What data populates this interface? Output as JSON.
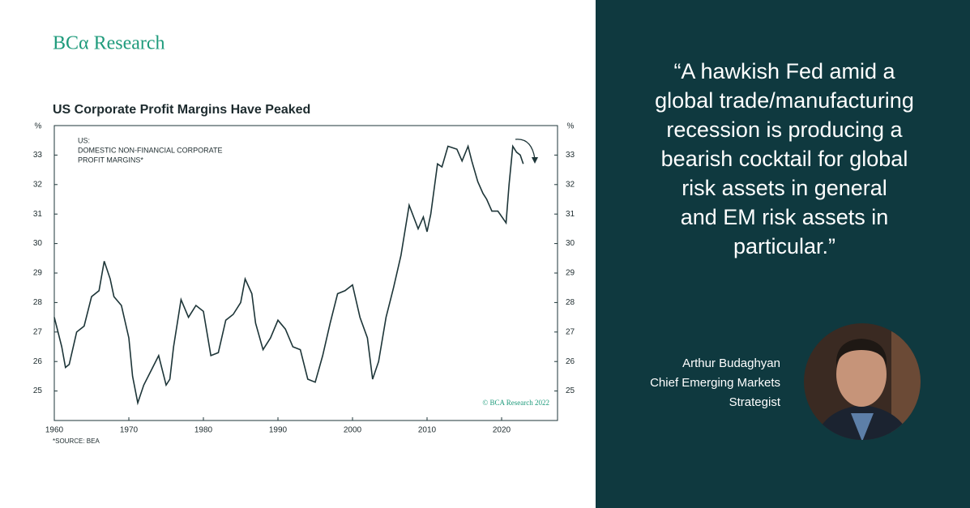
{
  "brand": "BCα Research",
  "chart_data": {
    "type": "line",
    "title": "US Corporate Profit Margins Have Peaked",
    "y_unit": "%",
    "annotation_lines": [
      "US:",
      "DOMESTIC NON-FINANCIAL CORPORATE",
      "PROFIT MARGINS*"
    ],
    "footnote": "*SOURCE: BEA",
    "copyright": "© BCA Research 2022",
    "xlim": [
      1960,
      2027.5
    ],
    "xticks": [
      1960,
      1970,
      1980,
      1990,
      2000,
      2010,
      2020
    ],
    "ylim": [
      24,
      34
    ],
    "yticks": [
      25,
      26,
      27,
      28,
      29,
      30,
      31,
      32,
      33
    ],
    "series": [
      {
        "name": "US: DOMESTIC NON-FINANCIAL CORPORATE PROFIT MARGINS",
        "color": "#1d3538",
        "x": [
          1960,
          1961,
          1961.5,
          1962,
          1963,
          1964,
          1965,
          1966,
          1966.7,
          1967.5,
          1968,
          1969,
          1970,
          1970.5,
          1971.2,
          1972,
          1973,
          1974,
          1975,
          1975.5,
          1976,
          1977,
          1978,
          1979,
          1980,
          1981,
          1982,
          1983,
          1984,
          1985,
          1985.6,
          1986.5,
          1987,
          1988,
          1989,
          1990,
          1991,
          1992,
          1993,
          1994,
          1995,
          1996,
          1997,
          1998,
          1999,
          2000,
          2001,
          2002,
          2002.7,
          2003.5,
          2004.5,
          2005.5,
          2006.5,
          2007.6,
          2008.8,
          2009.5,
          2010,
          2010.5,
          2011.4,
          2012,
          2012.8,
          2014,
          2014.7,
          2015.5,
          2016,
          2016.8,
          2017.5,
          2018,
          2018.7,
          2019.5,
          2020.6,
          2021,
          2021.5,
          2022,
          2022.5,
          2022.9
        ],
        "values": [
          27.5,
          26.5,
          25.8,
          25.9,
          27.0,
          27.2,
          28.2,
          28.4,
          29.4,
          28.8,
          28.2,
          27.9,
          26.8,
          25.5,
          24.6,
          25.2,
          25.7,
          26.2,
          25.2,
          25.4,
          26.5,
          28.1,
          27.5,
          27.9,
          27.7,
          26.2,
          26.3,
          27.4,
          27.6,
          28.0,
          28.8,
          28.3,
          27.3,
          26.4,
          26.8,
          27.4,
          27.1,
          26.5,
          26.4,
          25.4,
          25.3,
          26.2,
          27.3,
          28.3,
          28.4,
          28.6,
          27.5,
          26.8,
          25.4,
          26.0,
          27.5,
          28.5,
          29.6,
          31.3,
          30.5,
          30.9,
          30.4,
          31.0,
          32.7,
          32.6,
          33.3,
          33.2,
          32.8,
          33.3,
          32.8,
          32.1,
          31.7,
          31.5,
          31.1,
          31.1,
          30.7,
          32.0,
          33.3,
          33.1,
          33.0,
          32.7
        ]
      }
    ]
  },
  "quote_lines": [
    "“A hawkish Fed amid a",
    "global trade/manufacturing",
    "recession is producing a",
    "bearish cocktail for global",
    "risk assets in general",
    "and EM risk assets in",
    "particular.”"
  ],
  "person": {
    "name": "Arthur Budaghyan",
    "role_lines": [
      "Chief Emerging Markets",
      "Strategist"
    ]
  }
}
